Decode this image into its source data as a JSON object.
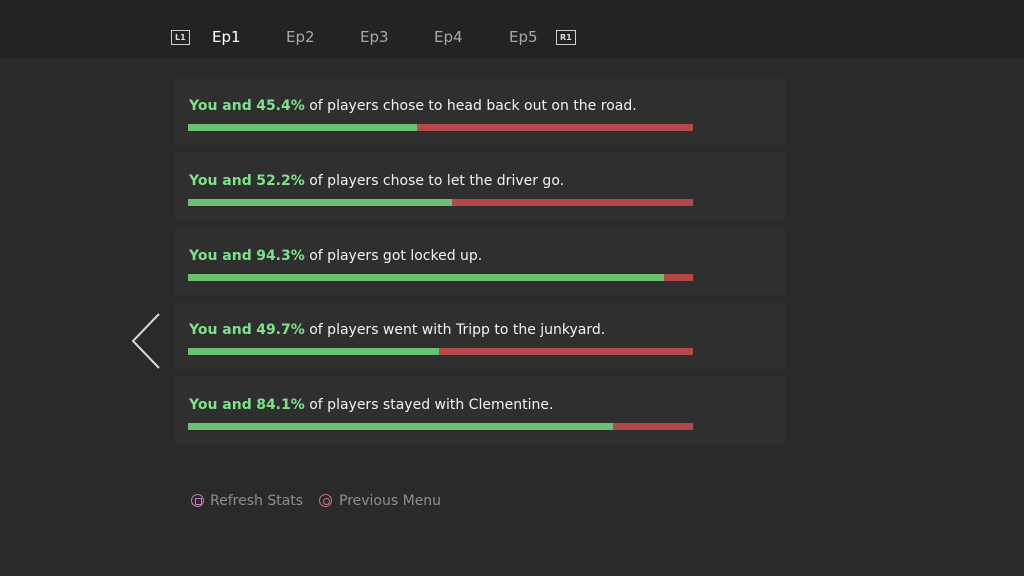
{
  "tabs": {
    "left_button": "L1",
    "right_button": "R1",
    "items": [
      "Ep1",
      "Ep2",
      "Ep3",
      "Ep4",
      "Ep5"
    ],
    "selected": 0
  },
  "choices": [
    {
      "lead": "You and",
      "percent_label": "45.4%",
      "percent": 45.4,
      "text": "of players chose to head back out on the road."
    },
    {
      "lead": "You and",
      "percent_label": "52.2%",
      "percent": 52.2,
      "text": "of players chose to let the driver go."
    },
    {
      "lead": "You and",
      "percent_label": "94.3%",
      "percent": 94.3,
      "text": "of players got locked up."
    },
    {
      "lead": "You and",
      "percent_label": "49.7%",
      "percent": 49.7,
      "text": "of players went with Tripp to the junkyard."
    },
    {
      "lead": "You and",
      "percent_label": "84.1%",
      "percent": 84.1,
      "text": "of players stayed with Clementine."
    }
  ],
  "footer": {
    "refresh": "Refresh Stats",
    "previous": "Previous Menu"
  }
}
